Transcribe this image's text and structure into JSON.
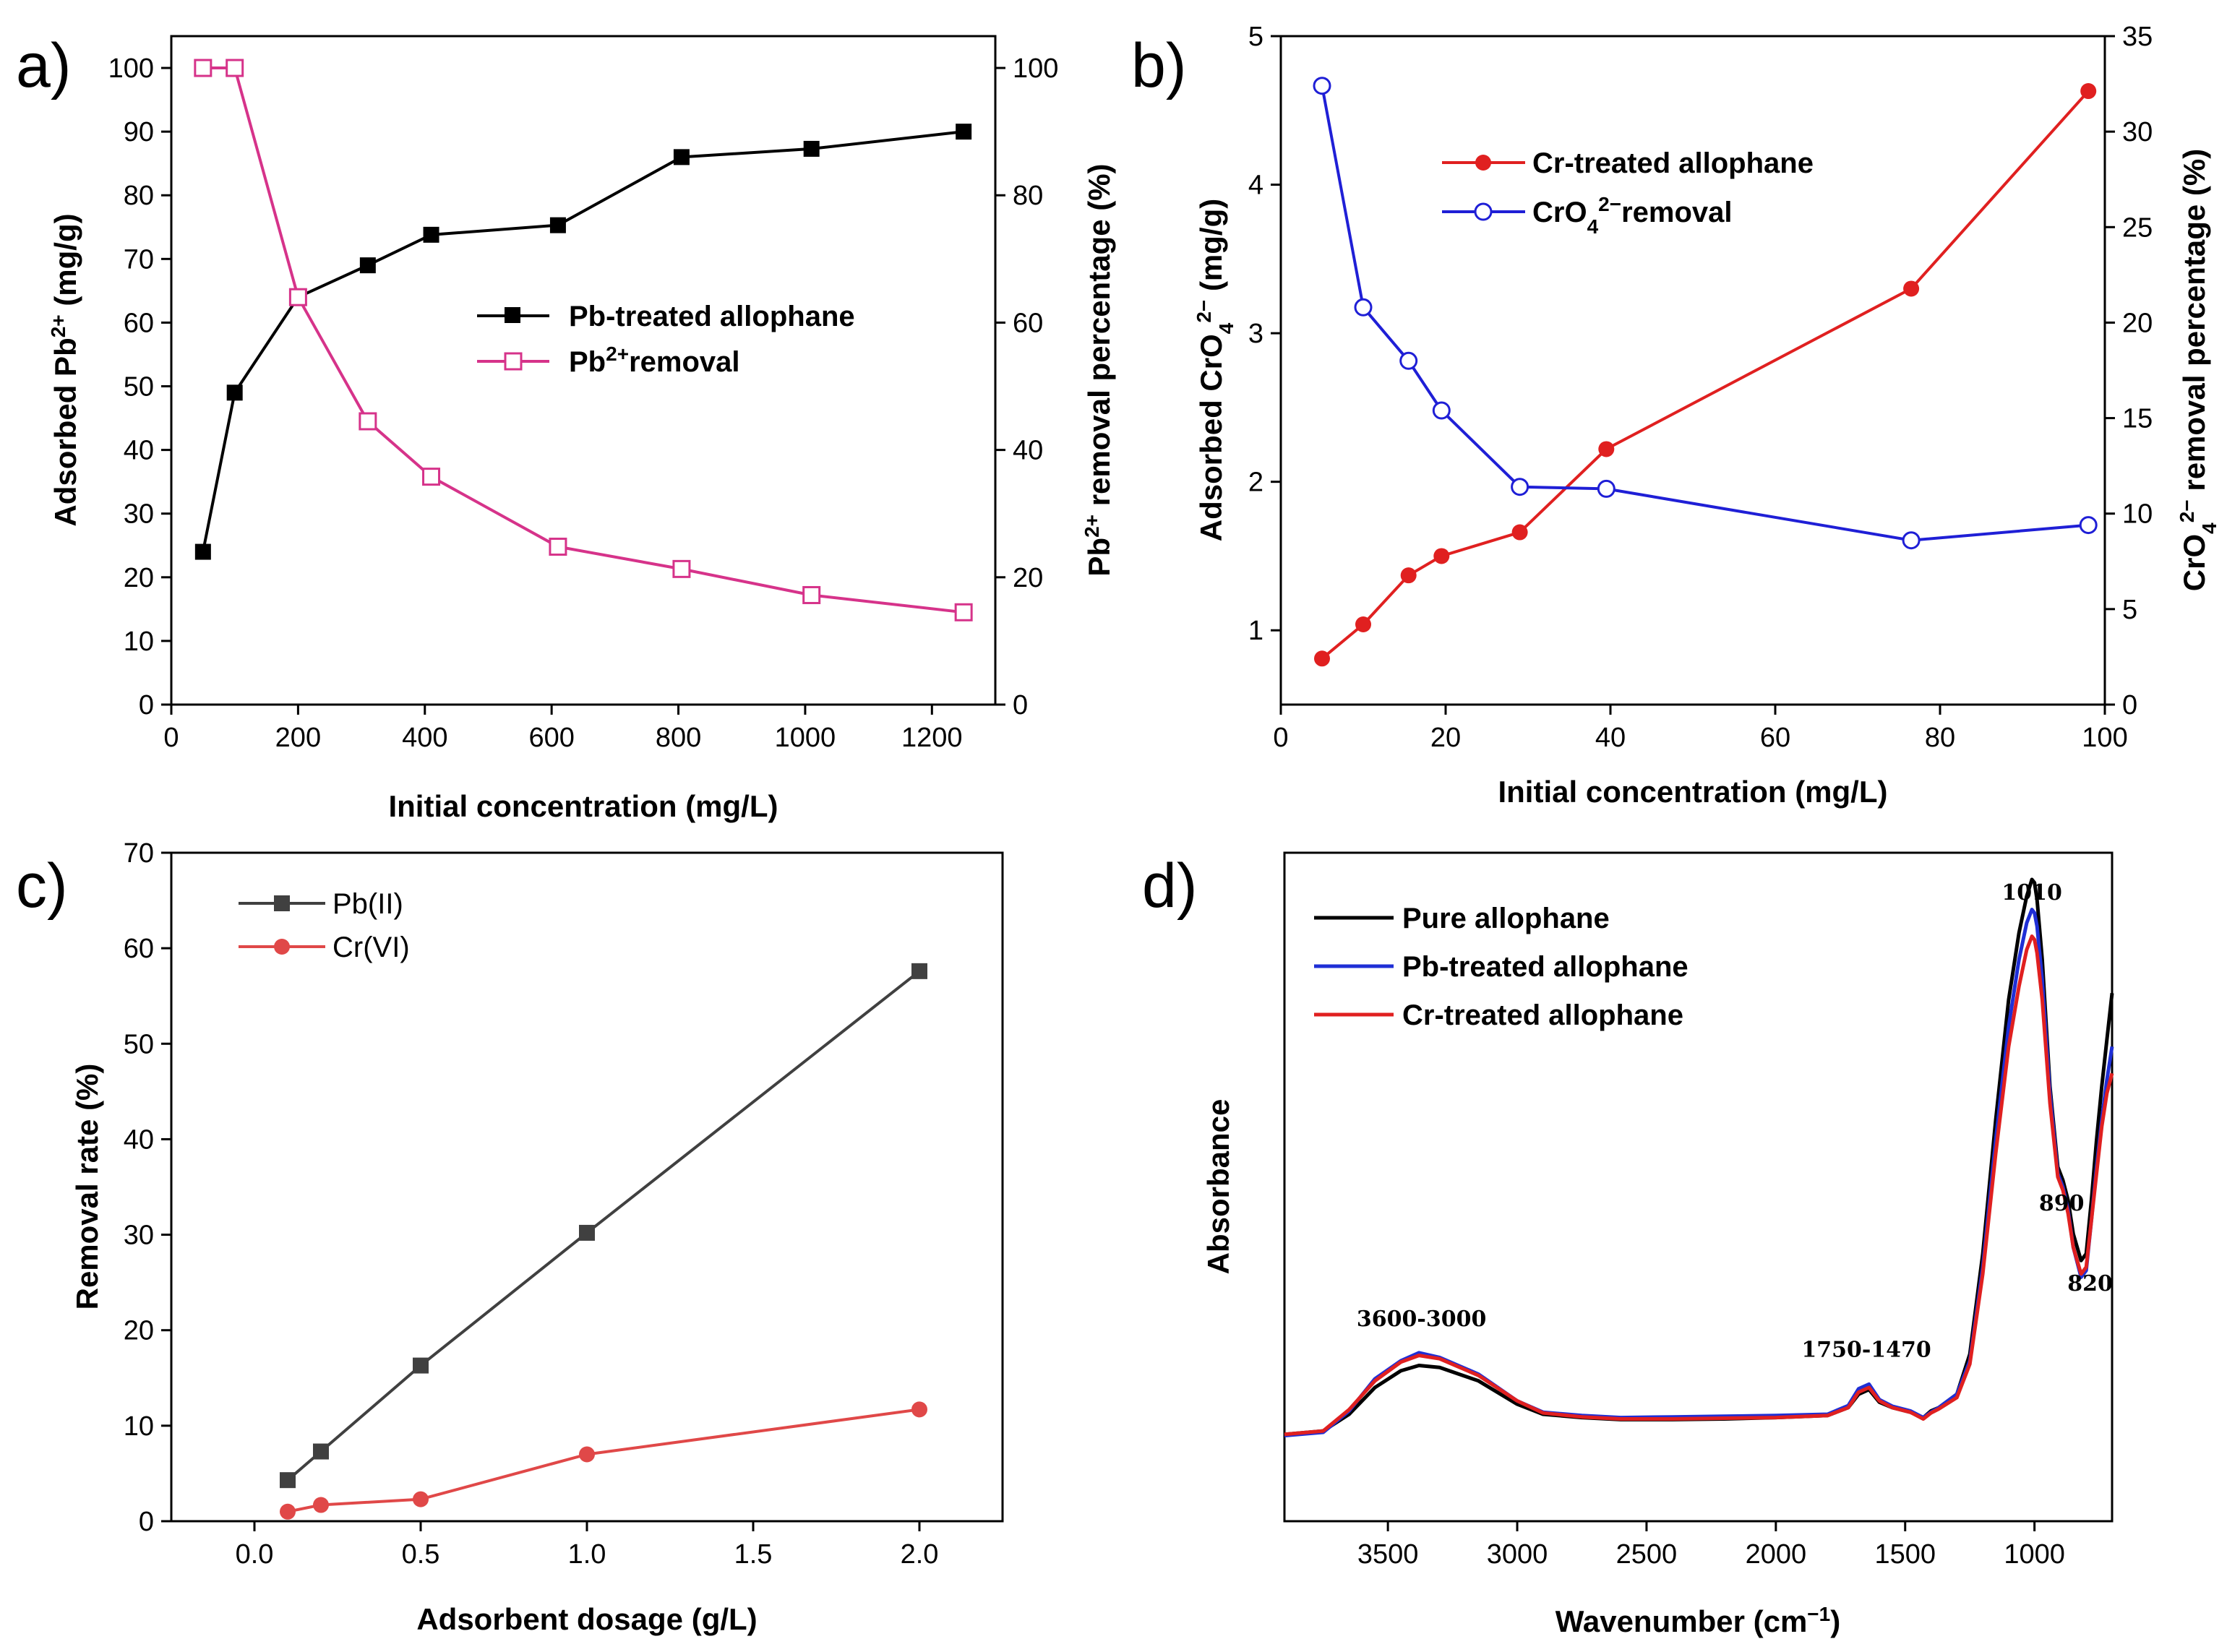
{
  "figure": {
    "panel_labels": [
      "a)",
      "b)",
      "c)",
      "d)"
    ]
  },
  "chart_data": [
    {
      "id": "a",
      "type": "line",
      "xlabel": "Initial concentration (mg/L)",
      "ylabel": "Adsorbed Pb²⁺ (mg/g)",
      "y2label": "Pb²⁺ removal percentage (%)",
      "xlim": [
        0,
        1300
      ],
      "ylim": [
        0,
        105
      ],
      "y2lim": [
        0,
        105
      ],
      "xticks": [
        0,
        200,
        400,
        600,
        800,
        1000,
        1200
      ],
      "yticks": [
        0,
        10,
        20,
        30,
        40,
        50,
        60,
        70,
        80,
        90,
        100
      ],
      "y2ticks": [
        0,
        20,
        40,
        60,
        80,
        100
      ],
      "series": [
        {
          "name": "Pb-treated allophane",
          "axis": "left",
          "color": "#000000",
          "marker": "square-filled",
          "x": [
            50,
            100,
            200,
            310,
            410,
            610,
            805,
            1010,
            1250
          ],
          "y": [
            24,
            49,
            64,
            69,
            73.8,
            75.3,
            86,
            87.3,
            90
          ]
        },
        {
          "name": "Pb²⁺removal",
          "axis": "right",
          "color": "#d6338a",
          "marker": "square-open",
          "x": [
            50,
            100,
            200,
            310,
            410,
            610,
            805,
            1010,
            1250
          ],
          "y": [
            100,
            100,
            64,
            44.5,
            35.8,
            24.8,
            21.3,
            17.2,
            14.5
          ]
        }
      ]
    },
    {
      "id": "b",
      "type": "line",
      "xlabel": "Initial concentration (mg/L)",
      "ylabel": "Adsorbed CrO₄²⁻ (mg/g)",
      "y2label": "CrO₄²⁻ removal percentage (%)",
      "xlim": [
        0,
        100
      ],
      "ylim": [
        0.5,
        5
      ],
      "y2lim": [
        0,
        35
      ],
      "xticks": [
        0,
        20,
        40,
        60,
        80,
        100
      ],
      "yticks": [
        1,
        2,
        3,
        4,
        5
      ],
      "y2ticks": [
        0,
        5,
        10,
        15,
        20,
        25,
        30,
        35
      ],
      "series": [
        {
          "name": "Cr-treated allophane",
          "axis": "left",
          "color": "#e02020",
          "marker": "circle-filled",
          "x": [
            5,
            10,
            15.5,
            19.5,
            29,
            39.5,
            76.5,
            98
          ],
          "y": [
            0.81,
            1.04,
            1.37,
            1.5,
            1.66,
            2.22,
            3.3,
            4.63
          ]
        },
        {
          "name": "CrO₄²⁻removal",
          "axis": "right",
          "color": "#1f1fd6",
          "marker": "circle-open",
          "x": [
            5,
            10,
            15.5,
            19.5,
            29,
            39.5,
            76.5,
            98
          ],
          "y": [
            32.4,
            20.8,
            18,
            15.4,
            11.4,
            11.3,
            8.6,
            9.4
          ]
        }
      ]
    },
    {
      "id": "c",
      "type": "line",
      "xlabel": "Adsorbent dosage (g/L)",
      "ylabel": "Removal rate (%)",
      "xlim": [
        -0.25,
        2.25
      ],
      "ylim": [
        0,
        70
      ],
      "xticks": [
        0.0,
        0.5,
        1.0,
        1.5,
        2.0
      ],
      "xtick_labels": [
        "0.0",
        "0.5",
        "1.0",
        "1.5",
        "2.0"
      ],
      "yticks": [
        0,
        10,
        20,
        30,
        40,
        50,
        60,
        70
      ],
      "series": [
        {
          "name": "Pb(II)",
          "color": "#404040",
          "marker": "square-filled",
          "x": [
            0.1,
            0.2,
            0.5,
            1.0,
            2.0
          ],
          "y": [
            4.3,
            7.3,
            16.3,
            30.2,
            57.6
          ]
        },
        {
          "name": "Cr(VI)",
          "color": "#e04848",
          "marker": "circle-filled",
          "x": [
            0.1,
            0.2,
            0.5,
            1.0,
            2.0
          ],
          "y": [
            1.0,
            1.7,
            2.3,
            7.0,
            11.7
          ]
        }
      ]
    },
    {
      "id": "d",
      "type": "line",
      "xlabel": "Wavenumber (cm⁻¹)",
      "ylabel": "Absorbance",
      "xlim": [
        3900,
        700
      ],
      "ylim": [
        0,
        1
      ],
      "xticks": [
        3500,
        3000,
        2500,
        2000,
        1500,
        1000
      ],
      "annotations": [
        {
          "text": "3600-3000",
          "x": 3370,
          "y": 0.292
        },
        {
          "text": "1750-1470",
          "x": 1650,
          "y": 0.246
        },
        {
          "text": "1010",
          "x": 1010,
          "y": 0.93
        },
        {
          "text": "890",
          "x": 895,
          "y": 0.465
        },
        {
          "text": "820",
          "x": 785,
          "y": 0.345
        }
      ],
      "series": [
        {
          "name": "Pure allophane",
          "color": "#000000",
          "x": [
            3900,
            3750,
            3650,
            3550,
            3450,
            3380,
            3300,
            3150,
            3000,
            2900,
            2750,
            2600,
            2400,
            2200,
            2000,
            1800,
            1720,
            1680,
            1640,
            1600,
            1550,
            1480,
            1430,
            1400,
            1370,
            1300,
            1250,
            1200,
            1150,
            1100,
            1060,
            1030,
            1010,
            1000,
            990,
            970,
            940,
            910,
            890,
            870,
            850,
            820,
            800,
            780,
            760,
            740,
            720,
            700
          ],
          "y": [
            0.13,
            0.135,
            0.16,
            0.2,
            0.225,
            0.233,
            0.23,
            0.21,
            0.175,
            0.16,
            0.155,
            0.152,
            0.152,
            0.153,
            0.155,
            0.158,
            0.17,
            0.19,
            0.197,
            0.178,
            0.17,
            0.163,
            0.155,
            0.165,
            0.17,
            0.19,
            0.25,
            0.4,
            0.6,
            0.78,
            0.88,
            0.935,
            0.96,
            0.955,
            0.93,
            0.84,
            0.65,
            0.53,
            0.51,
            0.48,
            0.43,
            0.39,
            0.4,
            0.48,
            0.57,
            0.65,
            0.72,
            0.79
          ]
        },
        {
          "name": "Pb-treated allophane",
          "color": "#1f2fd6",
          "x": [
            3900,
            3750,
            3650,
            3550,
            3450,
            3380,
            3300,
            3150,
            3000,
            2900,
            2750,
            2600,
            2400,
            2200,
            2000,
            1800,
            1720,
            1680,
            1640,
            1600,
            1550,
            1480,
            1430,
            1400,
            1370,
            1300,
            1250,
            1200,
            1150,
            1100,
            1060,
            1030,
            1010,
            1000,
            990,
            970,
            940,
            910,
            890,
            870,
            850,
            820,
            800,
            780,
            760,
            740,
            720,
            700
          ],
          "y": [
            0.128,
            0.133,
            0.165,
            0.213,
            0.24,
            0.252,
            0.245,
            0.22,
            0.18,
            0.163,
            0.158,
            0.155,
            0.156,
            0.157,
            0.158,
            0.16,
            0.173,
            0.198,
            0.205,
            0.182,
            0.172,
            0.165,
            0.155,
            0.163,
            0.17,
            0.19,
            0.24,
            0.38,
            0.57,
            0.74,
            0.84,
            0.895,
            0.915,
            0.91,
            0.89,
            0.81,
            0.64,
            0.52,
            0.5,
            0.465,
            0.41,
            0.365,
            0.375,
            0.45,
            0.53,
            0.6,
            0.66,
            0.71
          ]
        },
        {
          "name": "Cr-treated allophane",
          "color": "#e02020",
          "x": [
            3900,
            3750,
            3650,
            3550,
            3450,
            3380,
            3300,
            3150,
            3000,
            2900,
            2750,
            2600,
            2400,
            2200,
            2000,
            1800,
            1720,
            1680,
            1640,
            1600,
            1550,
            1480,
            1430,
            1400,
            1370,
            1300,
            1250,
            1200,
            1150,
            1100,
            1060,
            1030,
            1010,
            1000,
            990,
            970,
            940,
            910,
            890,
            870,
            850,
            820,
            800,
            780,
            760,
            740,
            720,
            700
          ],
          "y": [
            0.13,
            0.135,
            0.167,
            0.21,
            0.238,
            0.248,
            0.243,
            0.218,
            0.18,
            0.162,
            0.156,
            0.153,
            0.153,
            0.154,
            0.155,
            0.158,
            0.17,
            0.193,
            0.2,
            0.18,
            0.17,
            0.163,
            0.153,
            0.162,
            0.168,
            0.185,
            0.235,
            0.37,
            0.55,
            0.71,
            0.8,
            0.855,
            0.875,
            0.87,
            0.85,
            0.78,
            0.625,
            0.515,
            0.495,
            0.46,
            0.41,
            0.37,
            0.38,
            0.45,
            0.52,
            0.59,
            0.64,
            0.67
          ]
        }
      ]
    }
  ]
}
